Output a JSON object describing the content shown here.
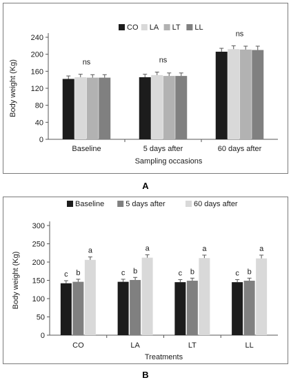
{
  "panels": {
    "a_label": "A",
    "b_label": "B"
  },
  "chart_data": [
    {
      "type": "bar",
      "panel": "A",
      "categories": [
        "Baseline",
        "5 days after",
        "60 days after"
      ],
      "series": [
        {
          "name": "CO",
          "color": "#1c1c1c",
          "values": [
            142,
            146,
            206
          ],
          "errors": [
            7,
            7,
            8
          ]
        },
        {
          "name": "LA",
          "color": "#d9d9d9",
          "values": [
            146,
            151,
            212
          ],
          "errors": [
            7,
            7,
            8
          ]
        },
        {
          "name": "LT",
          "color": "#b2b2b2",
          "values": [
            145,
            149,
            211
          ],
          "errors": [
            7,
            7,
            8
          ]
        },
        {
          "name": "LL",
          "color": "#808080",
          "values": [
            145,
            149,
            210
          ],
          "errors": [
            7,
            7,
            9
          ]
        }
      ],
      "annotations": [
        "ns",
        "ns",
        "ns"
      ],
      "xlabel": "Sampling occasions",
      "ylabel": "Body weight (Kg)",
      "ylim": [
        0,
        240
      ],
      "yticks": [
        0,
        40,
        80,
        120,
        160,
        200,
        240
      ],
      "grid": false,
      "legend": "top-center"
    },
    {
      "type": "bar",
      "panel": "B",
      "categories": [
        "CO",
        "LA",
        "LT",
        "LL"
      ],
      "series": [
        {
          "name": "Baseline",
          "color": "#1c1c1c",
          "values": [
            142,
            146,
            145,
            145
          ],
          "errors": [
            7,
            7,
            7,
            7
          ],
          "labels": [
            "c",
            "c",
            "c",
            "c"
          ]
        },
        {
          "name": "5 days after",
          "color": "#808080",
          "values": [
            146,
            151,
            149,
            149
          ],
          "errors": [
            7,
            7,
            7,
            7
          ],
          "labels": [
            "b",
            "b",
            "b",
            "b"
          ]
        },
        {
          "name": "60 days after",
          "color": "#d9d9d9",
          "values": [
            206,
            212,
            211,
            210
          ],
          "errors": [
            8,
            8,
            8,
            9
          ],
          "labels": [
            "a",
            "a",
            "a",
            "a"
          ]
        }
      ],
      "xlabel": "Treatments",
      "ylabel": "Body weight (Kg)",
      "ylim": [
        0,
        300
      ],
      "yticks": [
        0,
        50,
        100,
        150,
        200,
        250,
        300
      ],
      "grid": false,
      "legend": "top-center"
    }
  ]
}
